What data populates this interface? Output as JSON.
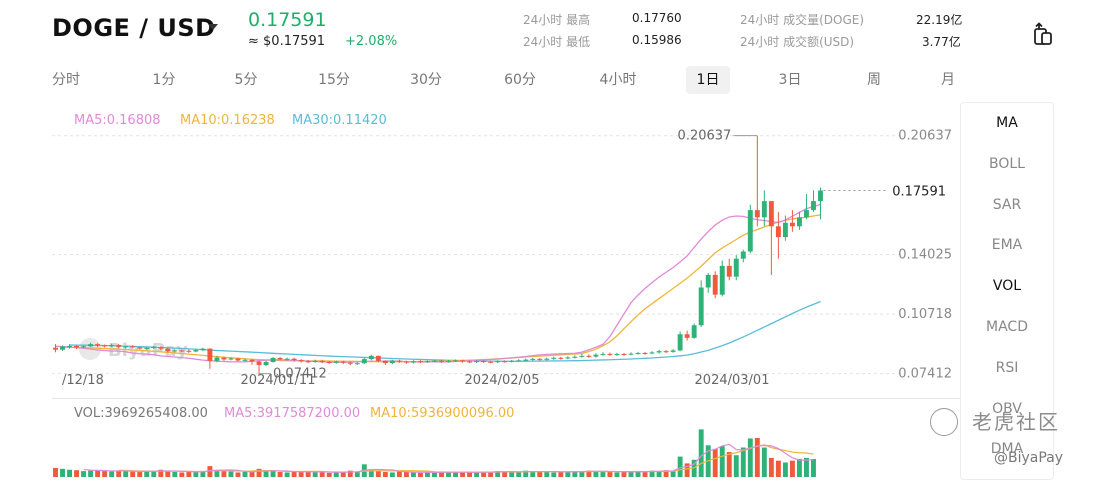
{
  "header": {
    "pair": "DOGE / USD",
    "price": "0.17591",
    "usd_price": "≈ $0.17591",
    "change": "+2.08%",
    "stats": [
      {
        "label": "24小时 最高",
        "value": "0.17760"
      },
      {
        "label": "24小时 最低",
        "value": "0.15986"
      },
      {
        "label": "24小时 成交量(DOGE)",
        "value": "22.19亿"
      },
      {
        "label": "24小时 成交额(USD)",
        "value": "3.77亿"
      }
    ]
  },
  "tabs": [
    "分时",
    "1分",
    "5分",
    "15分",
    "30分",
    "60分",
    "4小时",
    "1日",
    "3日",
    "周",
    "月"
  ],
  "active_tab": "1日",
  "indicators": [
    "MA",
    "BOLL",
    "SAR",
    "EMA",
    "VOL",
    "MACD",
    "RSI",
    "OBV",
    "DMA"
  ],
  "active_indicators": [
    "MA",
    "VOL"
  ],
  "ma_legend": [
    {
      "text": "MA5:0.16808",
      "color": "#e08ad8"
    },
    {
      "text": "MA10:0.16238",
      "color": "#f0b43c"
    },
    {
      "text": "MA30:0.11420",
      "color": "#5bbcd9"
    }
  ],
  "vol_legend": [
    {
      "text": "VOL:3969265408.00",
      "color": "#777777"
    },
    {
      "text": "MA5:3917587200.00",
      "color": "#e08ad8"
    },
    {
      "text": "MA10:5936900096.00",
      "color": "#f0b43c"
    }
  ],
  "watermarks": {
    "chart": "BiyaPay",
    "community": "老虎社区",
    "handle": "@BiyaPay"
  },
  "colors": {
    "up": "#2fb277",
    "down": "#ef5a3c",
    "accent": "#1fae6a"
  },
  "chart_data": {
    "type": "candlestick",
    "x_tick_labels": [
      "/12/18",
      "2024/01/11",
      "2024/02/05",
      "2024/03/01"
    ],
    "y_tick_labels": [
      "0.20637",
      "0.14025",
      "0.10718",
      "0.07412"
    ],
    "last_price_label": "0.17591",
    "max_label": "0.20637",
    "min_label": "0.07412",
    "ylim": [
      0.0639,
      0.2251
    ],
    "grid": true,
    "candles": [
      [
        0.0885,
        0.0874,
        0.0905,
        0.086
      ],
      [
        0.0874,
        0.0892,
        0.0898,
        0.0868
      ],
      [
        0.0892,
        0.0895,
        0.0905,
        0.088
      ],
      [
        0.0895,
        0.0887,
        0.09,
        0.0878
      ],
      [
        0.0887,
        0.0893,
        0.0898,
        0.0884
      ],
      [
        0.0893,
        0.0905,
        0.0913,
        0.0889
      ],
      [
        0.0905,
        0.0898,
        0.091,
        0.0889
      ],
      [
        0.0898,
        0.0894,
        0.0903,
        0.0887
      ],
      [
        0.0894,
        0.09,
        0.0907,
        0.0889
      ],
      [
        0.09,
        0.089,
        0.0905,
        0.0882
      ],
      [
        0.089,
        0.0893,
        0.0898,
        0.088
      ],
      [
        0.0893,
        0.0887,
        0.0899,
        0.0881
      ],
      [
        0.0887,
        0.088,
        0.089,
        0.0875
      ],
      [
        0.088,
        0.0884,
        0.089,
        0.0872
      ],
      [
        0.0884,
        0.0889,
        0.0896,
        0.0878
      ],
      [
        0.0889,
        0.088,
        0.0892,
        0.0872
      ],
      [
        0.088,
        0.0866,
        0.0885,
        0.0858
      ],
      [
        0.0866,
        0.087,
        0.0876,
        0.0859
      ],
      [
        0.087,
        0.0868,
        0.0877,
        0.0861
      ],
      [
        0.0868,
        0.0864,
        0.0875,
        0.0856
      ],
      [
        0.0864,
        0.0872,
        0.0878,
        0.086
      ],
      [
        0.0872,
        0.088,
        0.0885,
        0.0866
      ],
      [
        0.088,
        0.0812,
        0.0882,
        0.0768
      ],
      [
        0.0812,
        0.083,
        0.084,
        0.0804
      ],
      [
        0.083,
        0.082,
        0.0836,
        0.0812
      ],
      [
        0.082,
        0.0825,
        0.0832,
        0.0815
      ],
      [
        0.0825,
        0.0814,
        0.083,
        0.0808
      ],
      [
        0.0814,
        0.0818,
        0.0826,
        0.0808
      ],
      [
        0.0818,
        0.0808,
        0.0822,
        0.079
      ],
      [
        0.0808,
        0.0789,
        0.0812,
        0.0741
      ],
      [
        0.0789,
        0.0806,
        0.0814,
        0.0783
      ],
      [
        0.0806,
        0.0828,
        0.0834,
        0.0802
      ],
      [
        0.0828,
        0.0821,
        0.0833,
        0.0815
      ],
      [
        0.0821,
        0.0824,
        0.083,
        0.0814
      ],
      [
        0.0824,
        0.0817,
        0.0829,
        0.0808
      ],
      [
        0.0817,
        0.081,
        0.0822,
        0.0802
      ],
      [
        0.081,
        0.0808,
        0.0817,
        0.08
      ],
      [
        0.0808,
        0.0812,
        0.0819,
        0.0802
      ],
      [
        0.0812,
        0.0806,
        0.0818,
        0.0799
      ],
      [
        0.0806,
        0.0801,
        0.0812,
        0.0795
      ],
      [
        0.0801,
        0.0808,
        0.0814,
        0.0796
      ],
      [
        0.0808,
        0.0802,
        0.0813,
        0.0794
      ],
      [
        0.0802,
        0.0796,
        0.0808,
        0.0788
      ],
      [
        0.0796,
        0.0799,
        0.0805,
        0.0789
      ],
      [
        0.0799,
        0.0822,
        0.083,
        0.0795
      ],
      [
        0.0822,
        0.084,
        0.0846,
        0.0815
      ],
      [
        0.084,
        0.0812,
        0.0842,
        0.0805
      ],
      [
        0.0812,
        0.08,
        0.0815,
        0.0789
      ],
      [
        0.08,
        0.0813,
        0.0818,
        0.0794
      ],
      [
        0.0813,
        0.0808,
        0.0818,
        0.0801
      ],
      [
        0.0808,
        0.0803,
        0.0813,
        0.0796
      ],
      [
        0.0803,
        0.081,
        0.0816,
        0.0798
      ],
      [
        0.081,
        0.0806,
        0.0816,
        0.08
      ],
      [
        0.0806,
        0.081,
        0.0815,
        0.0801
      ],
      [
        0.081,
        0.0813,
        0.0819,
        0.0805
      ],
      [
        0.0813,
        0.0808,
        0.0818,
        0.0801
      ],
      [
        0.0808,
        0.0812,
        0.0817,
        0.0802
      ],
      [
        0.0812,
        0.0815,
        0.082,
        0.0806
      ],
      [
        0.0815,
        0.0809,
        0.0819,
        0.0802
      ],
      [
        0.0809,
        0.0805,
        0.0814,
        0.0799
      ],
      [
        0.0805,
        0.0811,
        0.0816,
        0.08
      ],
      [
        0.0811,
        0.0807,
        0.0815,
        0.0801
      ],
      [
        0.0807,
        0.0805,
        0.0812,
        0.0799
      ],
      [
        0.0805,
        0.081,
        0.0815,
        0.08
      ],
      [
        0.081,
        0.0808,
        0.0815,
        0.0802
      ],
      [
        0.0808,
        0.0812,
        0.0817,
        0.0803
      ],
      [
        0.0812,
        0.0815,
        0.0821,
        0.0806
      ],
      [
        0.0815,
        0.0819,
        0.0825,
        0.081
      ],
      [
        0.0819,
        0.0823,
        0.0829,
        0.0813
      ],
      [
        0.0823,
        0.0818,
        0.0828,
        0.0812
      ],
      [
        0.0818,
        0.0824,
        0.083,
        0.0812
      ],
      [
        0.0824,
        0.0829,
        0.0836,
        0.0818
      ],
      [
        0.0829,
        0.0826,
        0.0834,
        0.0819
      ],
      [
        0.0826,
        0.0831,
        0.0838,
        0.0821
      ],
      [
        0.0831,
        0.0835,
        0.0843,
        0.0825
      ],
      [
        0.0835,
        0.084,
        0.085,
        0.083
      ],
      [
        0.084,
        0.0836,
        0.0848,
        0.0829
      ],
      [
        0.0836,
        0.0846,
        0.0855,
        0.083
      ],
      [
        0.0846,
        0.0851,
        0.086,
        0.084
      ],
      [
        0.0851,
        0.0846,
        0.0858,
        0.0839
      ],
      [
        0.0846,
        0.085,
        0.0857,
        0.084
      ],
      [
        0.085,
        0.0848,
        0.0856,
        0.0841
      ],
      [
        0.0848,
        0.0852,
        0.086,
        0.0843
      ],
      [
        0.0852,
        0.0856,
        0.0862,
        0.0847
      ],
      [
        0.0856,
        0.0853,
        0.0861,
        0.0846
      ],
      [
        0.0853,
        0.0859,
        0.0866,
        0.0849
      ],
      [
        0.0859,
        0.0866,
        0.0874,
        0.0852
      ],
      [
        0.0866,
        0.0862,
        0.0872,
        0.0855
      ],
      [
        0.0862,
        0.087,
        0.0878,
        0.0857
      ],
      [
        0.087,
        0.096,
        0.0975,
        0.0866
      ],
      [
        0.096,
        0.094,
        0.098,
        0.0925
      ],
      [
        0.094,
        0.101,
        0.102,
        0.0935
      ],
      [
        0.101,
        0.122,
        0.126,
        0.1
      ],
      [
        0.122,
        0.129,
        0.13,
        0.119
      ],
      [
        0.129,
        0.118,
        0.131,
        0.116
      ],
      [
        0.118,
        0.134,
        0.137,
        0.117
      ],
      [
        0.134,
        0.128,
        0.138,
        0.126
      ],
      [
        0.128,
        0.138,
        0.14,
        0.126
      ],
      [
        0.138,
        0.142,
        0.143,
        0.136
      ],
      [
        0.142,
        0.165,
        0.168,
        0.141
      ],
      [
        0.165,
        0.161,
        0.2064,
        0.156
      ],
      [
        0.161,
        0.17,
        0.176,
        0.156
      ],
      [
        0.17,
        0.156,
        0.17,
        0.129
      ],
      [
        0.156,
        0.15,
        0.164,
        0.138
      ],
      [
        0.15,
        0.158,
        0.162,
        0.148
      ],
      [
        0.158,
        0.156,
        0.165,
        0.153
      ],
      [
        0.156,
        0.161,
        0.164,
        0.154
      ],
      [
        0.161,
        0.165,
        0.174,
        0.16
      ],
      [
        0.165,
        0.17,
        0.176,
        0.164
      ],
      [
        0.17,
        0.1759,
        0.1776,
        0.1599
      ]
    ],
    "ma5": [
      0.0893,
      0.0889,
      0.0883,
      0.0874,
      0.0867,
      0.0866,
      0.0852,
      0.085,
      0.0838,
      0.0833,
      0.0826,
      0.0816,
      0.081,
      0.0807,
      0.0806,
      0.0812,
      0.0818,
      0.0818,
      0.0814,
      0.081,
      0.0806,
      0.0804,
      0.0805,
      0.0809,
      0.081,
      0.0812,
      0.0808,
      0.0806,
      0.0807,
      0.0806,
      0.0809,
      0.0813,
      0.0818,
      0.0822,
      0.0829,
      0.0836,
      0.0845,
      0.085,
      0.0852,
      0.0855,
      0.088,
      0.091,
      0.103,
      0.115,
      0.122,
      0.128,
      0.133,
      0.139,
      0.148,
      0.156,
      0.161,
      0.162,
      0.16,
      0.159,
      0.158,
      0.162,
      0.166,
      0.1681
    ],
    "ma10": [
      0.0888,
      0.0886,
      0.0884,
      0.088,
      0.0876,
      0.0871,
      0.0866,
      0.086,
      0.0853,
      0.0846,
      0.0838,
      0.0831,
      0.0825,
      0.082,
      0.0816,
      0.0813,
      0.0812,
      0.0812,
      0.0811,
      0.081,
      0.0809,
      0.0808,
      0.0808,
      0.0807,
      0.0808,
      0.081,
      0.0812,
      0.0815,
      0.0818,
      0.0822,
      0.0827,
      0.0833,
      0.0838,
      0.0843,
      0.0848,
      0.0853,
      0.088,
      0.0925,
      0.101,
      0.109,
      0.115,
      0.121,
      0.127,
      0.134,
      0.142,
      0.147,
      0.152,
      0.155,
      0.158,
      0.16,
      0.161,
      0.1624
    ],
    "ma30": [
      0.09,
      0.0899,
      0.0897,
      0.0894,
      0.089,
      0.0886,
      0.0881,
      0.0875,
      0.0869,
      0.0864,
      0.0859,
      0.0853,
      0.0848,
      0.0843,
      0.0838,
      0.0834,
      0.083,
      0.0826,
      0.0822,
      0.0819,
      0.0816,
      0.0813,
      0.0811,
      0.081,
      0.081,
      0.0811,
      0.0812,
      0.0813,
      0.0816,
      0.0819,
      0.0823,
      0.0828,
      0.0835,
      0.0845,
      0.087,
      0.0905,
      0.095,
      0.1,
      0.105,
      0.11,
      0.1142
    ],
    "volumes": [
      2.0,
      1.8,
      1.6,
      1.5,
      1.3,
      1.4,
      1.5,
      1.3,
      1.2,
      1.4,
      1.3,
      1.2,
      1.1,
      1.3,
      1.4,
      1.6,
      1.2,
      1.1,
      1.0,
      1.2,
      1.1,
      1.3,
      2.4,
      1.5,
      1.3,
      1.2,
      1.0,
      1.1,
      1.2,
      1.8,
      1.4,
      1.3,
      1.1,
      1.0,
      1.2,
      1.1,
      1.3,
      1.0,
      1.1,
      0.9,
      1.0,
      1.2,
      1.4,
      1.1,
      2.8,
      1.6,
      1.4,
      1.1,
      1.0,
      1.2,
      1.1,
      1.0,
      0.9,
      1.1,
      1.0,
      1.2,
      1.1,
      1.0,
      1.0,
      1.1,
      1.0,
      1.2,
      1.1,
      1.3,
      1.2,
      1.1,
      1.0,
      1.4,
      1.3,
      1.2,
      1.1,
      1.0,
      1.1,
      1.2,
      1.3,
      1.2,
      1.4,
      1.3,
      1.2,
      1.1,
      1.0,
      1.2,
      1.1,
      1.3,
      1.2,
      1.4,
      1.3,
      1.5,
      1.4,
      4.5,
      3.0,
      3.8,
      10.5,
      7.0,
      6.2,
      6.8,
      5.5,
      4.8,
      6.5,
      8.5,
      8.6,
      6.5,
      4.2,
      3.6,
      3.2,
      3.6,
      4.0,
      4.2,
      3.97
    ]
  }
}
